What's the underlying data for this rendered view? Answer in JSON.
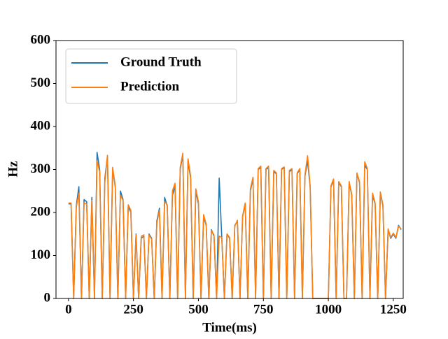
{
  "chart_data": {
    "type": "line",
    "x_label": "Time(ms)",
    "y_label": "Hz",
    "x": [
      0,
      10,
      20,
      30,
      40,
      50,
      60,
      70,
      80,
      90,
      100,
      110,
      120,
      130,
      140,
      150,
      160,
      170,
      180,
      190,
      200,
      210,
      220,
      230,
      240,
      250,
      260,
      270,
      280,
      290,
      300,
      310,
      320,
      330,
      340,
      350,
      360,
      370,
      380,
      390,
      400,
      410,
      420,
      430,
      440,
      450,
      460,
      470,
      480,
      490,
      500,
      510,
      520,
      530,
      540,
      550,
      560,
      570,
      580,
      590,
      600,
      610,
      620,
      630,
      640,
      650,
      660,
      670,
      680,
      690,
      700,
      710,
      720,
      730,
      740,
      750,
      760,
      770,
      780,
      790,
      800,
      810,
      820,
      830,
      840,
      850,
      860,
      870,
      880,
      890,
      900,
      910,
      920,
      930,
      940,
      950,
      960,
      970,
      980,
      990,
      1000,
      1010,
      1020,
      1030,
      1040,
      1050,
      1060,
      1070,
      1080,
      1090,
      1100,
      1110,
      1120,
      1130,
      1140,
      1150,
      1160,
      1170,
      1180,
      1190,
      1200,
      1210,
      1220,
      1230,
      1240,
      1250,
      1260,
      1270,
      1280
    ],
    "series": [
      {
        "name": "Ground Truth",
        "color": "#1f77b4",
        "values": [
          220,
          220,
          0,
          215,
          260,
          0,
          230,
          225,
          0,
          235,
          0,
          340,
          300,
          0,
          280,
          330,
          0,
          300,
          260,
          0,
          250,
          230,
          0,
          215,
          200,
          0,
          150,
          0,
          140,
          145,
          0,
          150,
          140,
          0,
          180,
          210,
          0,
          235,
          215,
          0,
          240,
          260,
          0,
          300,
          335,
          0,
          320,
          280,
          0,
          250,
          220,
          0,
          190,
          170,
          0,
          160,
          145,
          0,
          280,
          140,
          0,
          150,
          140,
          0,
          170,
          180,
          0,
          190,
          220,
          0,
          250,
          280,
          0,
          300,
          305,
          0,
          300,
          305,
          0,
          295,
          290,
          0,
          300,
          305,
          0,
          295,
          300,
          0,
          290,
          300,
          0,
          285,
          320,
          260,
          0,
          0,
          0,
          0,
          0,
          0,
          0,
          260,
          275,
          0,
          270,
          260,
          0,
          0,
          270,
          240,
          0,
          290,
          270,
          0,
          310,
          300,
          0,
          240,
          220,
          0,
          245,
          215,
          0,
          160,
          140,
          150,
          140,
          170,
          160
        ]
      },
      {
        "name": "Prediction",
        "color": "#ff7f0e",
        "values": [
          222,
          222,
          0,
          212,
          245,
          0,
          222,
          220,
          0,
          228,
          0,
          320,
          295,
          0,
          270,
          333,
          0,
          305,
          262,
          0,
          240,
          228,
          0,
          218,
          205,
          0,
          148,
          0,
          145,
          148,
          0,
          148,
          138,
          0,
          175,
          205,
          0,
          225,
          218,
          0,
          250,
          268,
          0,
          305,
          338,
          0,
          325,
          285,
          0,
          255,
          225,
          0,
          195,
          172,
          0,
          158,
          148,
          0,
          145,
          142,
          0,
          150,
          142,
          0,
          168,
          182,
          0,
          192,
          222,
          0,
          255,
          282,
          0,
          302,
          308,
          0,
          302,
          308,
          0,
          298,
          292,
          0,
          302,
          306,
          0,
          298,
          302,
          0,
          292,
          302,
          0,
          288,
          332,
          262,
          0,
          0,
          0,
          0,
          0,
          0,
          0,
          262,
          278,
          0,
          272,
          262,
          0,
          0,
          272,
          242,
          0,
          292,
          272,
          0,
          318,
          302,
          0,
          245,
          222,
          0,
          248,
          218,
          0,
          162,
          142,
          152,
          142,
          168,
          162
        ]
      }
    ],
    "xlim": [
      -48,
      1288
    ],
    "ylim": [
      0,
      600
    ],
    "xticks": [
      0,
      250,
      500,
      750,
      1000,
      1250
    ],
    "yticks": [
      0,
      100,
      200,
      300,
      400,
      500,
      600
    ],
    "legend": "upper left"
  }
}
